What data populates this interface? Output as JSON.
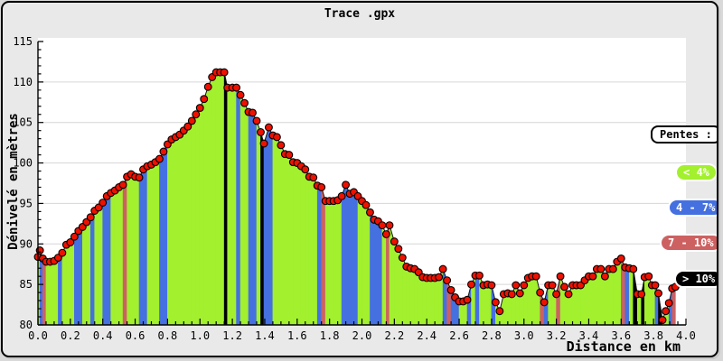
{
  "window": {
    "title": "Trace .gpx"
  },
  "colors": {
    "background": "#e9e9e9",
    "plot_background": "#ffffff",
    "grid": "#d6d6d6",
    "axis": "#000000",
    "profile_line": "#161616",
    "marker_fill": "#ee1100",
    "marker_stroke": "#000000",
    "slope_lt4": "#a2f02e",
    "slope_4_7": "#4570e0",
    "slope_7_10": "#cd6161",
    "slope_gt10": "#000000"
  },
  "axes": {
    "x": {
      "label": "Distance en km",
      "min": 0,
      "max": 4,
      "major_step": 0.2,
      "minor_step": 0.05,
      "tick_labels": [
        "0.0",
        "0.2",
        "0.4",
        "0.6",
        "0.8",
        "1.0",
        "1.2",
        "1.4",
        "1.6",
        "1.8",
        "2.0",
        "2.2",
        "2.4",
        "2.6",
        "2.8",
        "3.0",
        "3.2",
        "3.4",
        "3.6",
        "3.8",
        "4.0"
      ]
    },
    "y": {
      "label": "Dénivelé en mètres",
      "min": 80,
      "max": 115,
      "major_step": 5,
      "minor_step": 1,
      "tick_labels": [
        "80",
        "85",
        "90",
        "95",
        "100",
        "105",
        "110",
        "115"
      ]
    }
  },
  "legend": {
    "title": "Pentes :",
    "items": [
      {
        "label": "< 4%",
        "color": "#a2f02e"
      },
      {
        "label": "4 - 7%",
        "color": "#4570e0"
      },
      {
        "label": "7 - 10%",
        "color": "#cd6161"
      },
      {
        "label": "> 10%",
        "color": "#000000"
      }
    ]
  },
  "chart_data": {
    "type": "area",
    "title": "Trace .gpx",
    "xlabel": "Distance en km",
    "ylabel": "Dénivelé en mètres",
    "xlim": [
      0,
      4
    ],
    "ylim": [
      80,
      115
    ],
    "grid": "horizontal",
    "legend_position": "right",
    "x_units": "km",
    "y_units": "m",
    "slope_categories": [
      "< 4%",
      "4 - 7%",
      "7 - 10%",
      "> 10%"
    ],
    "note": "points = [distance_km, elevation_m, slope_category_index_of_segment_ending_here]",
    "points": [
      [
        0.0,
        88.4,
        0
      ],
      [
        0.012,
        89.2,
        0
      ],
      [
        0.03,
        88.2,
        1
      ],
      [
        0.05,
        87.8,
        2
      ],
      [
        0.075,
        87.8,
        0
      ],
      [
        0.1,
        87.9,
        0
      ],
      [
        0.125,
        88.3,
        0
      ],
      [
        0.15,
        88.9,
        1
      ],
      [
        0.175,
        89.9,
        0
      ],
      [
        0.2,
        90.2,
        0
      ],
      [
        0.225,
        90.9,
        0
      ],
      [
        0.25,
        91.6,
        1
      ],
      [
        0.275,
        92.1,
        1
      ],
      [
        0.3,
        92.7,
        0
      ],
      [
        0.325,
        93.3,
        0
      ],
      [
        0.35,
        94.1,
        1
      ],
      [
        0.375,
        94.5,
        0
      ],
      [
        0.4,
        95.1,
        0
      ],
      [
        0.425,
        95.9,
        1
      ],
      [
        0.45,
        96.3,
        1
      ],
      [
        0.475,
        96.6,
        0
      ],
      [
        0.5,
        97.0,
        0
      ],
      [
        0.525,
        97.3,
        0
      ],
      [
        0.55,
        98.3,
        2
      ],
      [
        0.575,
        98.6,
        0
      ],
      [
        0.6,
        98.3,
        0
      ],
      [
        0.625,
        98.2,
        0
      ],
      [
        0.65,
        99.2,
        1
      ],
      [
        0.675,
        99.6,
        1
      ],
      [
        0.7,
        99.8,
        0
      ],
      [
        0.725,
        100.1,
        0
      ],
      [
        0.75,
        100.5,
        0
      ],
      [
        0.775,
        101.4,
        1
      ],
      [
        0.8,
        102.3,
        1
      ],
      [
        0.825,
        102.9,
        0
      ],
      [
        0.85,
        103.2,
        0
      ],
      [
        0.875,
        103.5,
        0
      ],
      [
        0.9,
        104.0,
        0
      ],
      [
        0.925,
        104.5,
        0
      ],
      [
        0.95,
        105.2,
        0
      ],
      [
        0.975,
        106.0,
        0
      ],
      [
        1.0,
        106.8,
        0
      ],
      [
        1.025,
        107.9,
        0
      ],
      [
        1.05,
        109.4,
        0
      ],
      [
        1.075,
        110.6,
        0
      ],
      [
        1.1,
        111.2,
        0
      ],
      [
        1.125,
        111.2,
        0
      ],
      [
        1.15,
        111.2,
        0
      ],
      [
        1.17,
        109.3,
        3
      ],
      [
        1.2,
        109.3,
        0
      ],
      [
        1.225,
        109.3,
        0
      ],
      [
        1.25,
        108.4,
        1
      ],
      [
        1.275,
        107.4,
        0
      ],
      [
        1.3,
        106.3,
        0
      ],
      [
        1.325,
        106.2,
        1
      ],
      [
        1.35,
        105.2,
        1
      ],
      [
        1.375,
        103.8,
        0
      ],
      [
        1.395,
        102.4,
        3
      ],
      [
        1.425,
        104.4,
        1
      ],
      [
        1.45,
        103.4,
        1
      ],
      [
        1.475,
        103.2,
        0
      ],
      [
        1.5,
        102.2,
        0
      ],
      [
        1.525,
        101.1,
        0
      ],
      [
        1.55,
        101.0,
        0
      ],
      [
        1.575,
        100.1,
        0
      ],
      [
        1.6,
        100.0,
        0
      ],
      [
        1.625,
        99.6,
        0
      ],
      [
        1.65,
        99.2,
        0
      ],
      [
        1.675,
        98.3,
        0
      ],
      [
        1.7,
        98.2,
        0
      ],
      [
        1.725,
        97.2,
        0
      ],
      [
        1.75,
        97.0,
        1
      ],
      [
        1.775,
        95.3,
        2
      ],
      [
        1.8,
        95.3,
        0
      ],
      [
        1.825,
        95.3,
        0
      ],
      [
        1.85,
        95.4,
        0
      ],
      [
        1.875,
        95.9,
        0
      ],
      [
        1.9,
        97.3,
        1
      ],
      [
        1.925,
        96.2,
        1
      ],
      [
        1.95,
        96.4,
        1
      ],
      [
        1.975,
        95.9,
        1
      ],
      [
        2.0,
        95.3,
        0
      ],
      [
        2.025,
        94.8,
        0
      ],
      [
        2.05,
        93.9,
        0
      ],
      [
        2.075,
        93.0,
        1
      ],
      [
        2.1,
        92.8,
        1
      ],
      [
        2.125,
        92.3,
        1
      ],
      [
        2.15,
        91.2,
        0
      ],
      [
        2.17,
        92.3,
        2
      ],
      [
        2.2,
        90.3,
        0
      ],
      [
        2.225,
        89.4,
        0
      ],
      [
        2.25,
        88.3,
        0
      ],
      [
        2.275,
        87.2,
        0
      ],
      [
        2.3,
        87.0,
        0
      ],
      [
        2.325,
        86.9,
        0
      ],
      [
        2.35,
        86.5,
        0
      ],
      [
        2.375,
        85.9,
        0
      ],
      [
        2.4,
        85.8,
        0
      ],
      [
        2.425,
        85.8,
        0
      ],
      [
        2.45,
        85.8,
        0
      ],
      [
        2.475,
        85.9,
        0
      ],
      [
        2.5,
        86.9,
        0
      ],
      [
        2.525,
        85.5,
        1
      ],
      [
        2.55,
        84.3,
        2
      ],
      [
        2.575,
        83.4,
        1
      ],
      [
        2.6,
        82.9,
        1
      ],
      [
        2.625,
        82.9,
        0
      ],
      [
        2.65,
        83.1,
        0
      ],
      [
        2.675,
        85.0,
        1
      ],
      [
        2.7,
        86.1,
        0
      ],
      [
        2.725,
        86.1,
        1
      ],
      [
        2.75,
        84.9,
        0
      ],
      [
        2.775,
        85.0,
        0
      ],
      [
        2.8,
        84.9,
        0
      ],
      [
        2.825,
        82.8,
        1
      ],
      [
        2.85,
        81.7,
        0
      ],
      [
        2.875,
        83.8,
        0
      ],
      [
        2.9,
        83.9,
        0
      ],
      [
        2.925,
        83.8,
        0
      ],
      [
        2.95,
        84.9,
        0
      ],
      [
        2.975,
        83.9,
        0
      ],
      [
        3.0,
        84.9,
        0
      ],
      [
        3.025,
        85.8,
        0
      ],
      [
        3.05,
        86.0,
        0
      ],
      [
        3.075,
        86.0,
        0
      ],
      [
        3.1,
        84.0,
        0
      ],
      [
        3.125,
        82.8,
        2
      ],
      [
        3.15,
        84.9,
        1
      ],
      [
        3.175,
        84.9,
        0
      ],
      [
        3.2,
        83.8,
        0
      ],
      [
        3.225,
        86.0,
        2
      ],
      [
        3.25,
        84.7,
        0
      ],
      [
        3.275,
        83.8,
        0
      ],
      [
        3.3,
        84.9,
        0
      ],
      [
        3.325,
        84.9,
        0
      ],
      [
        3.35,
        84.9,
        0
      ],
      [
        3.375,
        85.5,
        0
      ],
      [
        3.4,
        86.0,
        0
      ],
      [
        3.425,
        86.0,
        0
      ],
      [
        3.45,
        86.9,
        0
      ],
      [
        3.475,
        86.9,
        0
      ],
      [
        3.5,
        86.0,
        0
      ],
      [
        3.525,
        86.9,
        0
      ],
      [
        3.55,
        86.9,
        0
      ],
      [
        3.575,
        87.8,
        0
      ],
      [
        3.6,
        88.2,
        0
      ],
      [
        3.625,
        87.1,
        2
      ],
      [
        3.65,
        87.0,
        1
      ],
      [
        3.675,
        86.9,
        0
      ],
      [
        3.7,
        83.8,
        3
      ],
      [
        3.725,
        83.8,
        0
      ],
      [
        3.745,
        85.9,
        3
      ],
      [
        3.77,
        86.0,
        0
      ],
      [
        3.79,
        84.9,
        0
      ],
      [
        3.81,
        84.9,
        0
      ],
      [
        3.83,
        83.9,
        1
      ],
      [
        3.855,
        80.6,
        3
      ],
      [
        3.875,
        81.7,
        0
      ],
      [
        3.895,
        82.7,
        0
      ],
      [
        3.915,
        84.5,
        1
      ],
      [
        3.935,
        84.7,
        2
      ]
    ]
  }
}
